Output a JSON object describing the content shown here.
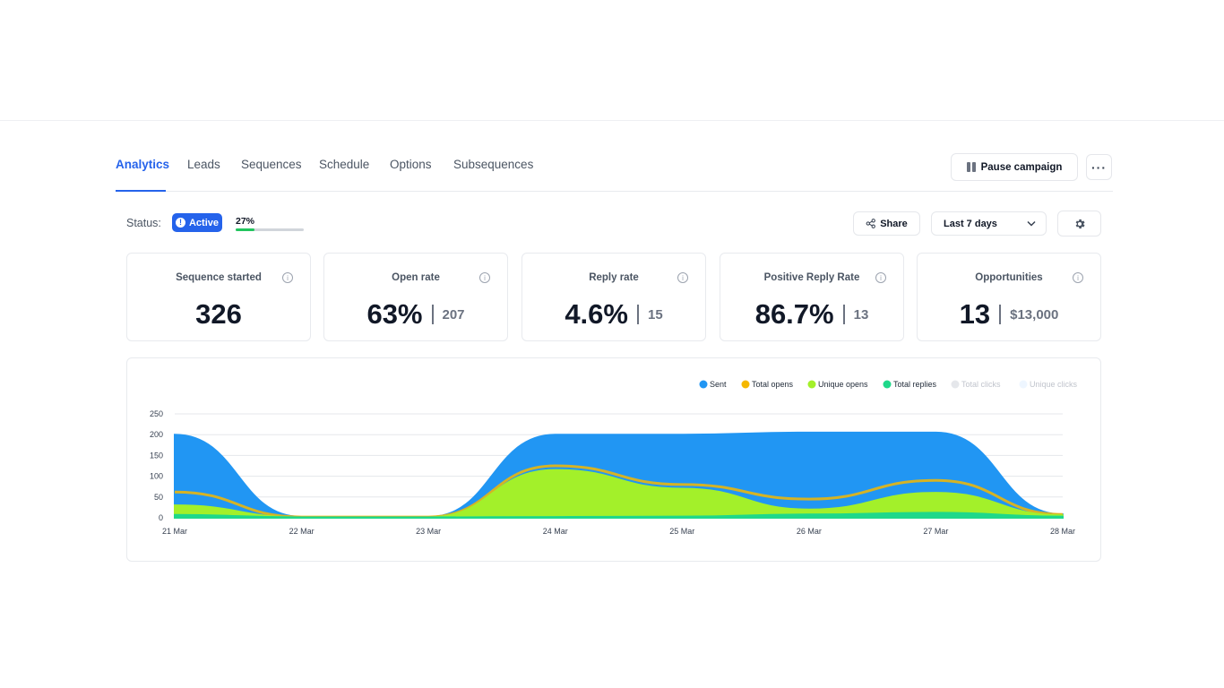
{
  "tabs": [
    {
      "label": "Analytics"
    },
    {
      "label": "Leads"
    },
    {
      "label": "Sequences"
    },
    {
      "label": "Schedule"
    },
    {
      "label": "Options"
    },
    {
      "label": "Subsequences"
    }
  ],
  "header": {
    "pause_label": "Pause campaign",
    "more_label": "···"
  },
  "status": {
    "label": "Status:",
    "badge": "Active",
    "progress_label": "27%",
    "progress": 0.27
  },
  "toolbar": {
    "share_label": "Share",
    "date_range": "Last 7 days"
  },
  "metrics": [
    {
      "title": "Sequence started",
      "value": "326",
      "secondary": ""
    },
    {
      "title": "Open rate",
      "value": "63%",
      "secondary": "207"
    },
    {
      "title": "Reply rate",
      "value": "4.6%",
      "secondary": "15"
    },
    {
      "title": "Positive Reply Rate",
      "value": "86.7%",
      "secondary": "13"
    },
    {
      "title": "Opportunities",
      "value": "13",
      "secondary": "$13,000"
    }
  ],
  "colors": {
    "accent": "#2563eb",
    "progress": "#22c55e"
  },
  "chart_data": {
    "type": "area",
    "x": [
      "21 Mar",
      "22 Mar",
      "23 Mar",
      "24 Mar",
      "25 Mar",
      "26 Mar",
      "27 Mar",
      "28 Mar"
    ],
    "ylim": [
      0,
      250
    ],
    "yticks": [
      0,
      50,
      100,
      150,
      200,
      250
    ],
    "grid": true,
    "legend_position": "top-right",
    "series": [
      {
        "name": "Sent",
        "color": "#2196f3",
        "kind": "area",
        "values": [
          200,
          2,
          2,
          200,
          200,
          205,
          205,
          8
        ]
      },
      {
        "name": "Total opens",
        "color": "#f5b800",
        "kind": "line",
        "values": [
          62,
          2,
          2,
          125,
          80,
          45,
          90,
          8
        ]
      },
      {
        "name": "Unique opens",
        "color": "#a3f02a",
        "kind": "area",
        "values": [
          30,
          1,
          1,
          115,
          70,
          20,
          60,
          6
        ]
      },
      {
        "name": "Total replies",
        "color": "#1fd88a",
        "kind": "area",
        "values": [
          7,
          1,
          1,
          2,
          3,
          8,
          12,
          3
        ]
      },
      {
        "name": "Total clicks",
        "color": "#e5e7eb",
        "kind": "line",
        "values": [
          0,
          0,
          0,
          0,
          0,
          0,
          0,
          0
        ]
      },
      {
        "name": "Unique clicks",
        "color": "#eef6ff",
        "kind": "line",
        "values": [
          0,
          0,
          0,
          0,
          0,
          0,
          0,
          0
        ]
      }
    ]
  }
}
